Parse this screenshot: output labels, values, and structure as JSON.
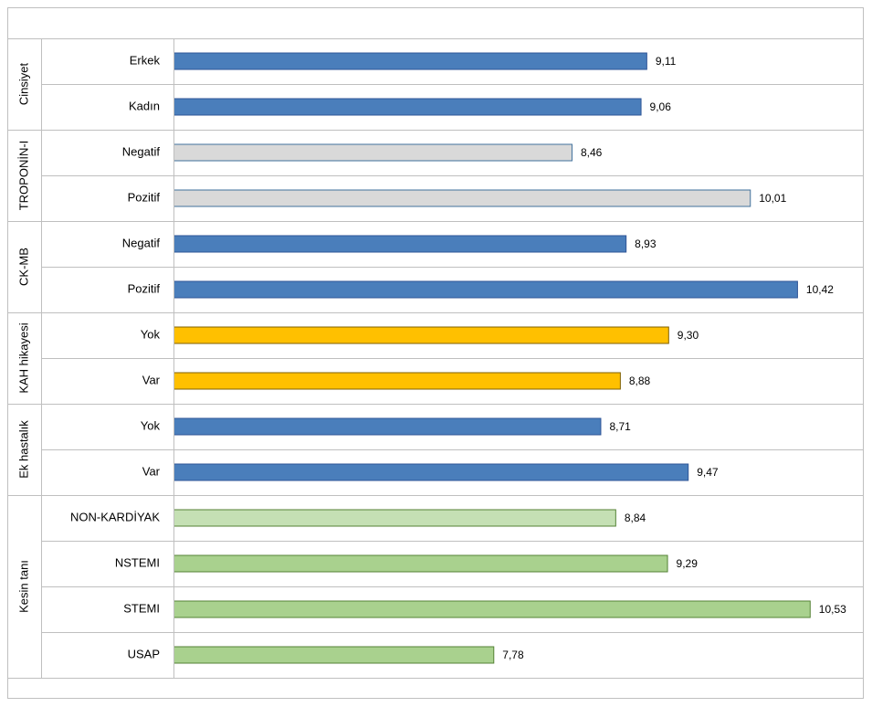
{
  "chart_data": {
    "type": "bar",
    "orientation": "horizontal",
    "xlim": [
      5,
      11
    ],
    "groups": [
      {
        "name": "Cinsiyet",
        "categories": [
          "Erkek",
          "Kadın"
        ],
        "values": [
          9.11,
          9.06
        ],
        "value_labels": [
          "9,11",
          "9,06"
        ],
        "color": "#4a7ebb",
        "edge": "#2f5597"
      },
      {
        "name": "TROPONİN-I",
        "categories": [
          "Negatif",
          "Pozitif"
        ],
        "values": [
          8.46,
          10.01
        ],
        "value_labels": [
          "8,46",
          "10,01"
        ],
        "color": "#d9d9d9",
        "edge": "#41719c"
      },
      {
        "name": "CK-MB",
        "categories": [
          "Negatif",
          "Pozitif"
        ],
        "values": [
          8.93,
          10.42
        ],
        "value_labels": [
          "8,93",
          "10,42"
        ],
        "color": "#4a7ebb",
        "edge": "#2f5597"
      },
      {
        "name": "KAH hikayesi",
        "categories": [
          "Yok",
          "Var"
        ],
        "values": [
          9.3,
          8.88
        ],
        "value_labels": [
          "9,30",
          "8,88"
        ],
        "color": "#ffc000",
        "edge": "#7f6000"
      },
      {
        "name": "Ek hastalık",
        "categories": [
          "Yok",
          "Var"
        ],
        "values": [
          8.71,
          9.47
        ],
        "value_labels": [
          "8,71",
          "9,47"
        ],
        "color": "#4a7ebb",
        "edge": "#2f5597"
      },
      {
        "name": "Kesin tanı",
        "categories": [
          "NON-KARDİYAK",
          "NSTEMI",
          "STEMI",
          "USAP"
        ],
        "values": [
          8.84,
          9.29,
          10.53,
          7.78
        ],
        "value_labels": [
          "8,84",
          "9,29",
          "10,53",
          "7,78"
        ],
        "colors": [
          "#c5e0b4",
          "#a9d18e",
          "#a9d18e",
          "#a9d18e"
        ],
        "edge": "#548235"
      }
    ]
  }
}
